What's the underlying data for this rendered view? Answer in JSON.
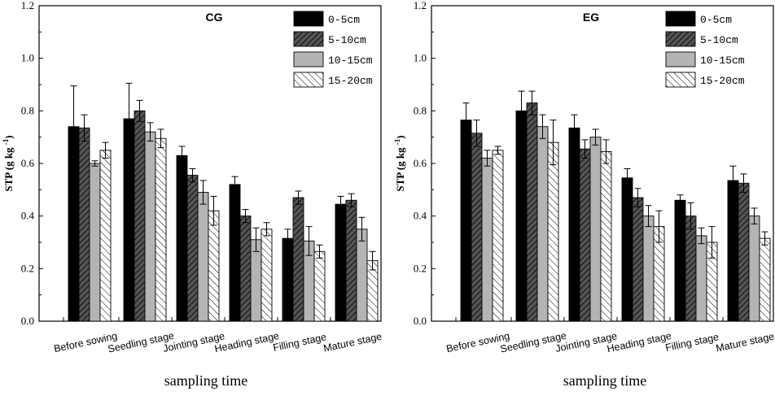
{
  "chart_data": [
    {
      "type": "bar",
      "title": "CG",
      "ylabel": "STP (g kg-1)",
      "ylabel_base": "STP (g kg",
      "ylabel_sup": "-1",
      "ylabel_close": ")",
      "xlabel": "sampling time",
      "ylim": [
        0,
        1.2
      ],
      "yticks": [
        "0.0",
        "0.2",
        "0.4",
        "0.6",
        "0.8",
        "1.0",
        "1.2"
      ],
      "categories": [
        "Before sowing",
        "Seedling stage",
        "Jointing stage",
        "Heading stage",
        "Filling stage",
        "Mature stage"
      ],
      "series": [
        {
          "name": "0-5cm",
          "fill": "#000000",
          "pattern": "solid",
          "values": [
            0.74,
            0.77,
            0.63,
            0.52,
            0.315,
            0.445
          ],
          "errors": [
            0.155,
            0.135,
            0.035,
            0.03,
            0.035,
            0.03
          ]
        },
        {
          "name": "5-10cm",
          "fill": "#555555",
          "pattern": "hatch",
          "values": [
            0.735,
            0.8,
            0.555,
            0.4,
            0.47,
            0.46
          ],
          "errors": [
            0.05,
            0.04,
            0.025,
            0.025,
            0.025,
            0.025
          ]
        },
        {
          "name": "10-15cm",
          "fill": "#b4b4b4",
          "pattern": "solid",
          "values": [
            0.6,
            0.72,
            0.49,
            0.31,
            0.305,
            0.35
          ],
          "errors": [
            0.01,
            0.035,
            0.045,
            0.045,
            0.055,
            0.045
          ]
        },
        {
          "name": "15-20cm",
          "fill": "#ffffff",
          "pattern": "backhatch",
          "values": [
            0.65,
            0.695,
            0.42,
            0.35,
            0.265,
            0.23
          ],
          "errors": [
            0.03,
            0.035,
            0.055,
            0.025,
            0.025,
            0.035
          ]
        }
      ]
    },
    {
      "type": "bar",
      "title": "EG",
      "ylabel": "STP (g kg-1)",
      "ylabel_base": "STP (g kg",
      "ylabel_sup": "-1",
      "ylabel_close": ")",
      "xlabel": "sampling time",
      "ylim": [
        0,
        1.2
      ],
      "yticks": [
        "0.0",
        "0.2",
        "0.4",
        "0.6",
        "0.8",
        "1.0",
        "1.2"
      ],
      "categories": [
        "Before sowing",
        "Seedling stage",
        "Jointing stage",
        "Heading stage",
        "Filling stage",
        "Mature stage"
      ],
      "series": [
        {
          "name": "0-5cm",
          "fill": "#000000",
          "pattern": "solid",
          "values": [
            0.765,
            0.8,
            0.735,
            0.545,
            0.46,
            0.535
          ],
          "errors": [
            0.065,
            0.075,
            0.05,
            0.035,
            0.02,
            0.055
          ]
        },
        {
          "name": "5-10cm",
          "fill": "#555555",
          "pattern": "hatch",
          "values": [
            0.715,
            0.83,
            0.655,
            0.47,
            0.4,
            0.525
          ],
          "errors": [
            0.05,
            0.045,
            0.035,
            0.035,
            0.05,
            0.035
          ]
        },
        {
          "name": "10-15cm",
          "fill": "#b4b4b4",
          "pattern": "solid",
          "values": [
            0.62,
            0.74,
            0.7,
            0.4,
            0.325,
            0.4
          ],
          "errors": [
            0.03,
            0.045,
            0.03,
            0.04,
            0.03,
            0.03
          ]
        },
        {
          "name": "15-20cm",
          "fill": "#ffffff",
          "pattern": "backhatch",
          "values": [
            0.65,
            0.68,
            0.645,
            0.36,
            0.3,
            0.315
          ],
          "errors": [
            0.015,
            0.085,
            0.045,
            0.06,
            0.06,
            0.025
          ]
        }
      ]
    }
  ]
}
